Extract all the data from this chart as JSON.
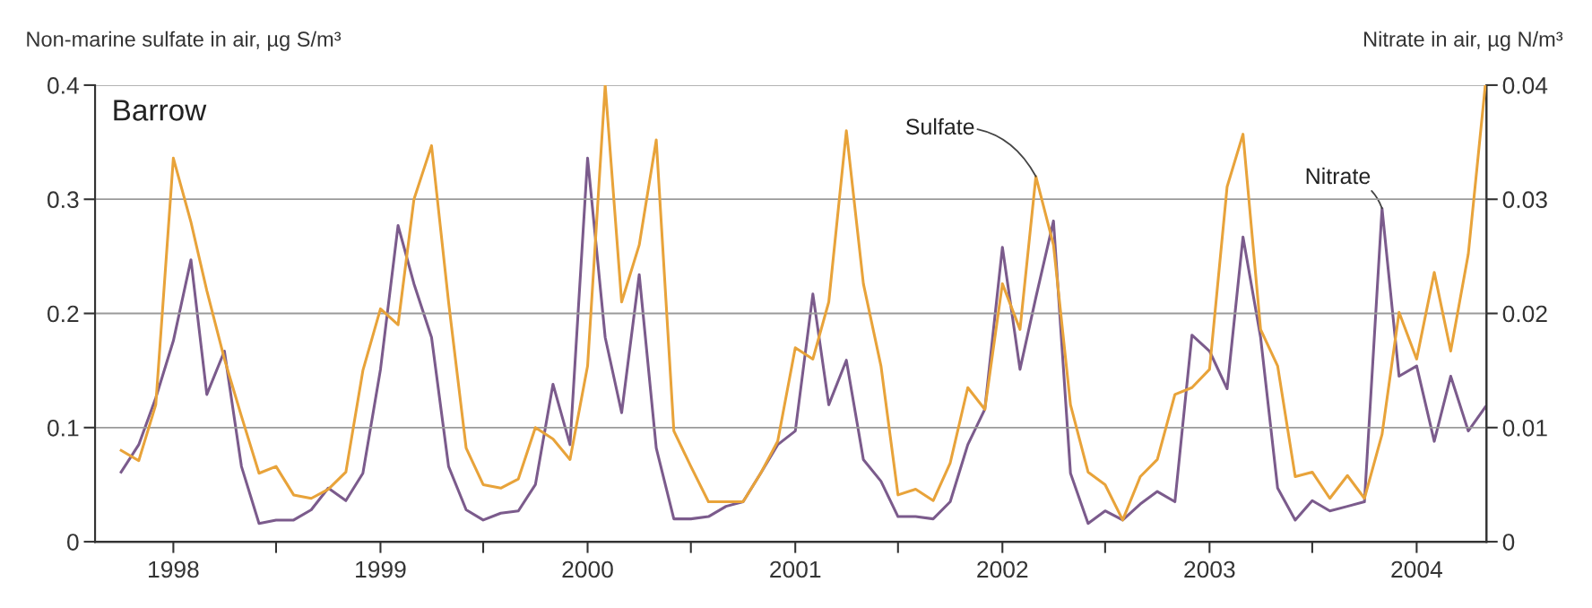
{
  "chart_data": {
    "type": "line",
    "ylabel": "Non-marine sulfate in air, µg S/m³",
    "y2label": "Nitrate in air, µg N/m³",
    "x": [
      "1997-10",
      "1997-11",
      "1997-12",
      "1998-01",
      "1998-02",
      "1998-03",
      "1998-04",
      "1998-05",
      "1998-06",
      "1998-07",
      "1998-08",
      "1998-09",
      "1998-10",
      "1998-11",
      "1998-12",
      "1999-01",
      "1999-02",
      "1999-03",
      "1999-04",
      "1999-05",
      "1999-06",
      "1999-07",
      "1999-08",
      "1999-09",
      "1999-10",
      "1999-11",
      "1999-12",
      "2000-01",
      "2000-02",
      "2000-03",
      "2000-04",
      "2000-05",
      "2000-06",
      "2000-07",
      "2000-08",
      "2000-09",
      "2000-10",
      "2000-11",
      "2000-12",
      "2001-01",
      "2001-02",
      "2001-03",
      "2001-04",
      "2001-05",
      "2001-06",
      "2001-07",
      "2001-08",
      "2001-09",
      "2001-10",
      "2001-11",
      "2001-12",
      "2002-01",
      "2002-02",
      "2002-03",
      "2002-04",
      "2002-05",
      "2002-06",
      "2002-07",
      "2002-08",
      "2002-09",
      "2002-10",
      "2002-11",
      "2002-12",
      "2003-01",
      "2003-02",
      "2003-03",
      "2003-04",
      "2003-05",
      "2003-06",
      "2003-07",
      "2003-08",
      "2003-09",
      "2003-10",
      "2003-11",
      "2003-12",
      "2004-01",
      "2004-02",
      "2004-03",
      "2004-04",
      "2004-05"
    ],
    "series": [
      {
        "name": "Sulfate",
        "color": "#e8a33a",
        "values": [
          0.08,
          0.071,
          0.12,
          0.336,
          0.28,
          0.22,
          0.16,
          0.11,
          0.06,
          0.066,
          0.041,
          0.038,
          0.046,
          0.061,
          0.15,
          0.204,
          0.19,
          0.3,
          0.347,
          0.21,
          0.082,
          0.05,
          0.047,
          0.055,
          0.1,
          0.09,
          0.072,
          0.154,
          0.4,
          0.21,
          0.26,
          0.352,
          0.097,
          0.066,
          0.035,
          0.035,
          0.035,
          0.06,
          0.088,
          0.17,
          0.16,
          0.21,
          0.36,
          0.226,
          0.154,
          0.041,
          0.046,
          0.036,
          0.069,
          0.135,
          0.116,
          0.226,
          0.186,
          0.32,
          0.26,
          0.12,
          0.061,
          0.05,
          0.019,
          0.057,
          0.072,
          0.129,
          0.135,
          0.151,
          0.311,
          0.357,
          0.186,
          0.154,
          0.057,
          0.061,
          0.038,
          0.058,
          0.038,
          0.094,
          0.201,
          0.16,
          0.236,
          0.167,
          0.252,
          0.4
        ]
      },
      {
        "name": "Nitrate",
        "color": "#7b5b8c",
        "axis": "y2",
        "values": [
          0.0061,
          0.0085,
          0.0126,
          0.0176,
          0.0247,
          0.0129,
          0.0167,
          0.0066,
          0.0016,
          0.0019,
          0.0019,
          0.0028,
          0.0047,
          0.0036,
          0.006,
          0.0151,
          0.0277,
          0.0226,
          0.0179,
          0.0066,
          0.0028,
          0.0019,
          0.0025,
          0.0027,
          0.005,
          0.0138,
          0.0085,
          0.0336,
          0.0179,
          0.0113,
          0.0234,
          0.0082,
          0.002,
          0.002,
          0.0022,
          0.0031,
          0.0035,
          0.006,
          0.0085,
          0.0097,
          0.0217,
          0.012,
          0.0159,
          0.0072,
          0.0053,
          0.0022,
          0.0022,
          0.002,
          0.0035,
          0.0085,
          0.0116,
          0.0258,
          0.0151,
          0.0214,
          0.0281,
          0.006,
          0.0016,
          0.0027,
          0.0019,
          0.0033,
          0.0044,
          0.0035,
          0.0181,
          0.0167,
          0.0134,
          0.0267,
          0.0179,
          0.0047,
          0.0019,
          0.0036,
          0.0027,
          0.0031,
          0.0035,
          0.0292,
          0.0145,
          0.0154,
          0.0088,
          0.0145,
          0.0097,
          0.0118
        ]
      }
    ],
    "annotations": [
      "Barrow"
    ],
    "xlim": [
      "1997-08-16",
      "2004-05-03"
    ],
    "xticks": [
      {
        "value": "1998-01-01",
        "label": "1998"
      },
      {
        "value": "1998-07-01",
        "label": null
      },
      {
        "value": "1999-01-01",
        "label": "1999"
      },
      {
        "value": "1999-07-01",
        "label": null
      },
      {
        "value": "2000-01-01",
        "label": "2000"
      },
      {
        "value": "2000-07-01",
        "label": null
      },
      {
        "value": "2001-01-01",
        "label": "2001"
      },
      {
        "value": "2001-07-01",
        "label": null
      },
      {
        "value": "2002-01-01",
        "label": "2002"
      },
      {
        "value": "2002-07-01",
        "label": null
      },
      {
        "value": "2003-01-01",
        "label": "2003"
      },
      {
        "value": "2003-07-01",
        "label": null
      },
      {
        "value": "2004-01-01",
        "label": "2004"
      }
    ],
    "ylim": [
      0,
      0.4
    ],
    "yticks": [
      0,
      0.1,
      0.2,
      0.3,
      0.4
    ],
    "y2lim": [
      0,
      0.04
    ],
    "y2ticks": [
      0,
      0.01,
      0.02,
      0.03,
      0.04
    ],
    "grid": "y",
    "legend": false,
    "marker": "none",
    "line_style": "solid"
  }
}
